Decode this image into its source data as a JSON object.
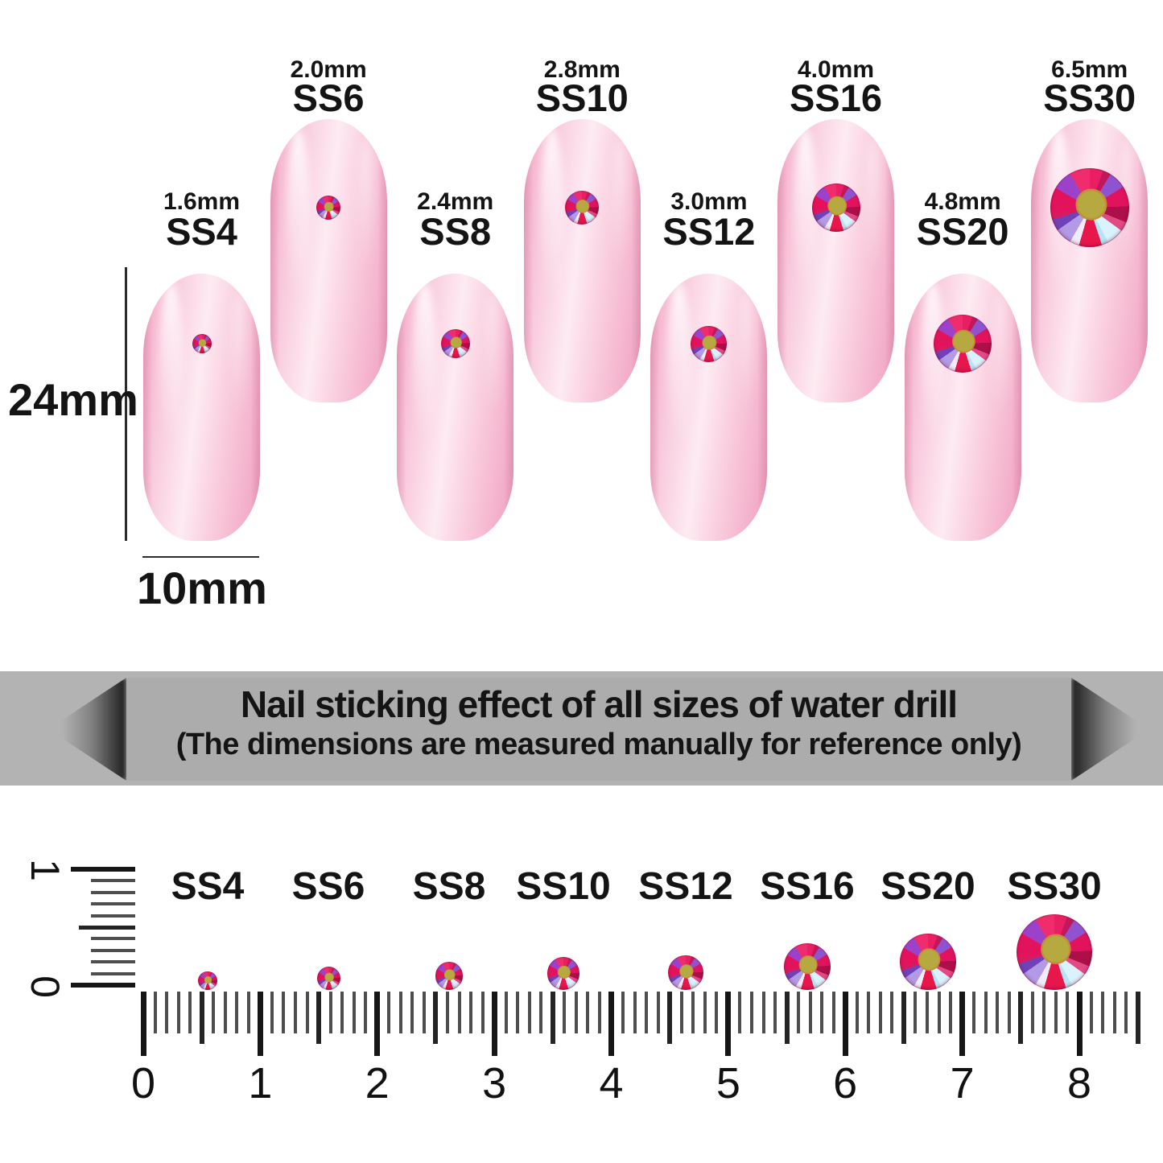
{
  "banner": {
    "title": "Nail sticking effect of all sizes of water drill",
    "subtitle": "(The dimensions are measured manually for reference only)"
  },
  "dimensions": {
    "height_label": "24mm",
    "width_label": "10mm"
  },
  "sizes": [
    {
      "ss": "SS4",
      "mm_label": "1.6mm",
      "mm": 1.6,
      "row": "low"
    },
    {
      "ss": "SS6",
      "mm_label": "2.0mm",
      "mm": 2.0,
      "row": "high"
    },
    {
      "ss": "SS8",
      "mm_label": "2.4mm",
      "mm": 2.4,
      "row": "low"
    },
    {
      "ss": "SS10",
      "mm_label": "2.8mm",
      "mm": 2.8,
      "row": "high"
    },
    {
      "ss": "SS12",
      "mm_label": "3.0mm",
      "mm": 3.0,
      "row": "low"
    },
    {
      "ss": "SS16",
      "mm_label": "4.0mm",
      "mm": 4.0,
      "row": "high"
    },
    {
      "ss": "SS20",
      "mm_label": "4.8mm",
      "mm": 4.8,
      "row": "low"
    },
    {
      "ss": "SS30",
      "mm_label": "6.5mm",
      "mm": 6.5,
      "row": "high"
    }
  ],
  "ruler": {
    "numbers": [
      "0",
      "1",
      "2",
      "3",
      "4",
      "5",
      "6",
      "7",
      "8"
    ],
    "vertical_numbers": [
      "1",
      "0"
    ]
  },
  "colors": {
    "nail_pink": "#f8c3d8",
    "band_gray": "#b3b3b3",
    "banner_gray": "#acacac",
    "gem_center_olive": "#b5a93f",
    "text_black": "#141414"
  }
}
